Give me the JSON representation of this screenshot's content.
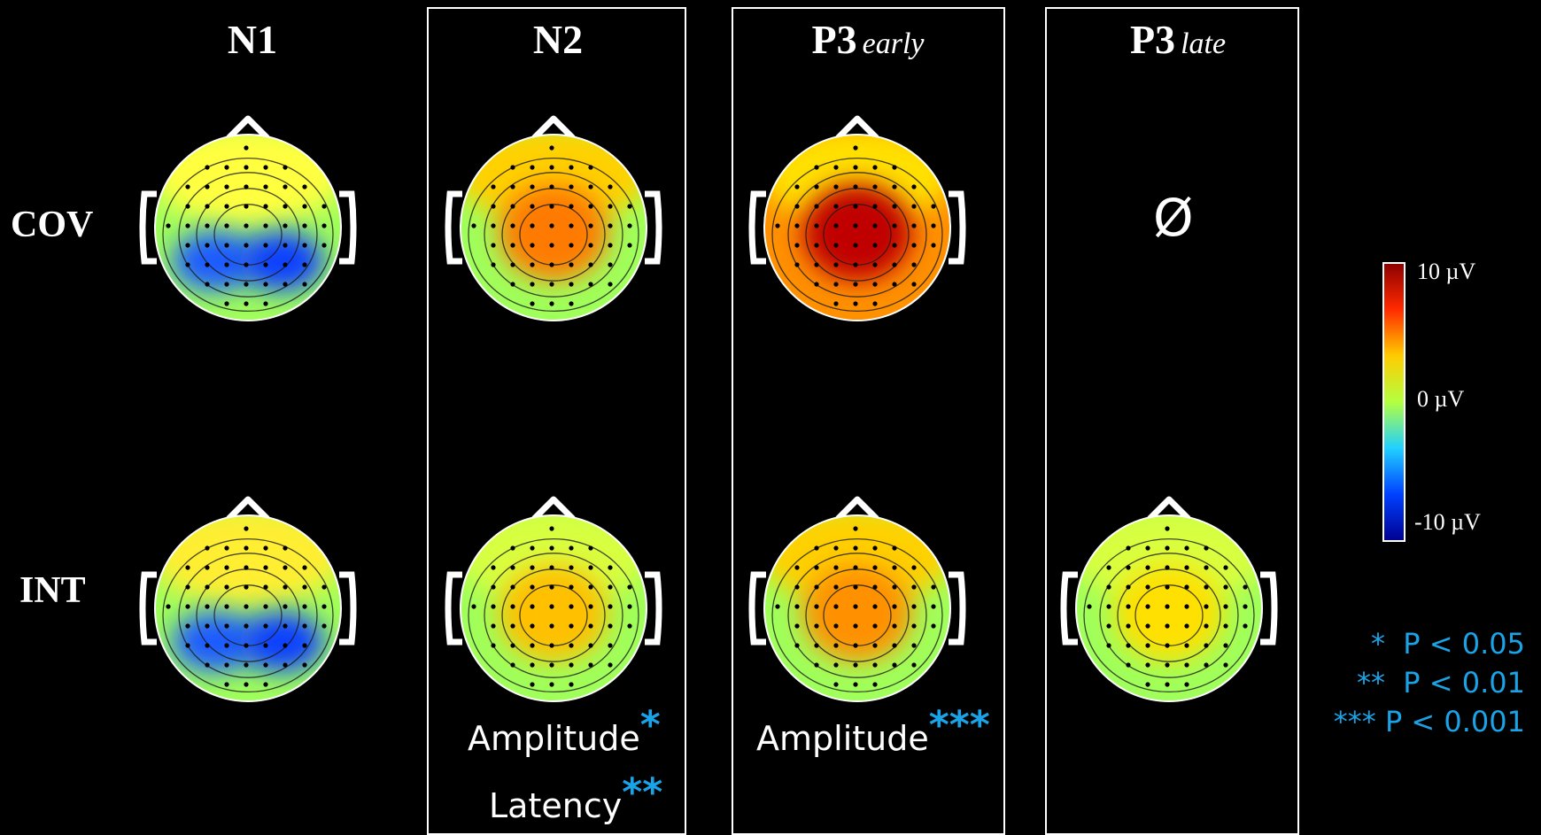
{
  "columns": [
    {
      "title": "N1",
      "sub": ""
    },
    {
      "title": "N2",
      "sub": ""
    },
    {
      "title": "P3",
      "sub": "early"
    },
    {
      "title": "P3",
      "sub": "late"
    }
  ],
  "rows": [
    "COV",
    "INT"
  ],
  "empty_symbol": "Ø",
  "annotations": {
    "n2_amplitude": {
      "label": "Amplitude",
      "stars": "*"
    },
    "n2_latency": {
      "label": "Latency",
      "stars": "**"
    },
    "p3early_amplitude": {
      "label": "Amplitude",
      "stars": "***"
    }
  },
  "colorbar": {
    "max_label": "10 µV",
    "mid_label": "0 µV",
    "min_label": "-10 µV",
    "colors": [
      "#8b0000",
      "#ff2a00",
      "#ffcc00",
      "#b4ff40",
      "#20d0ff",
      "#0040ff",
      "#000090"
    ]
  },
  "significance_legend": [
    {
      "stars": "*",
      "text": "P < 0.05"
    },
    {
      "stars": "**",
      "text": "P < 0.01"
    },
    {
      "stars": "***",
      "text": "P < 0.001"
    }
  ],
  "maps": {
    "cov_n1": {
      "bg": "#a0ff5a",
      "front": "#ffff40",
      "blobs": [
        "#1a5bff",
        "#0a40ff"
      ]
    },
    "cov_n2": {
      "bg": "#a0ff5a",
      "front": "#ffd000",
      "blobs": [
        "#ff7a00"
      ]
    },
    "cov_p3early": {
      "bg": "#ff9000",
      "front": "#ffe000",
      "blobs": [
        "#c00000"
      ]
    },
    "int_n1": {
      "bg": "#a0ff5a",
      "front": "#ffee30",
      "blobs": [
        "#1a5bff",
        "#0a40ff"
      ]
    },
    "int_n2": {
      "bg": "#a0ff5a",
      "front": "#d8ff40",
      "blobs": [
        "#ffc000"
      ]
    },
    "int_p3early": {
      "bg": "#a0ff5a",
      "front": "#ffd000",
      "blobs": [
        "#ff9000"
      ]
    },
    "int_p3late": {
      "bg": "#a0ff5a",
      "front": "#d8ff40",
      "blobs": [
        "#ffe000"
      ]
    }
  }
}
